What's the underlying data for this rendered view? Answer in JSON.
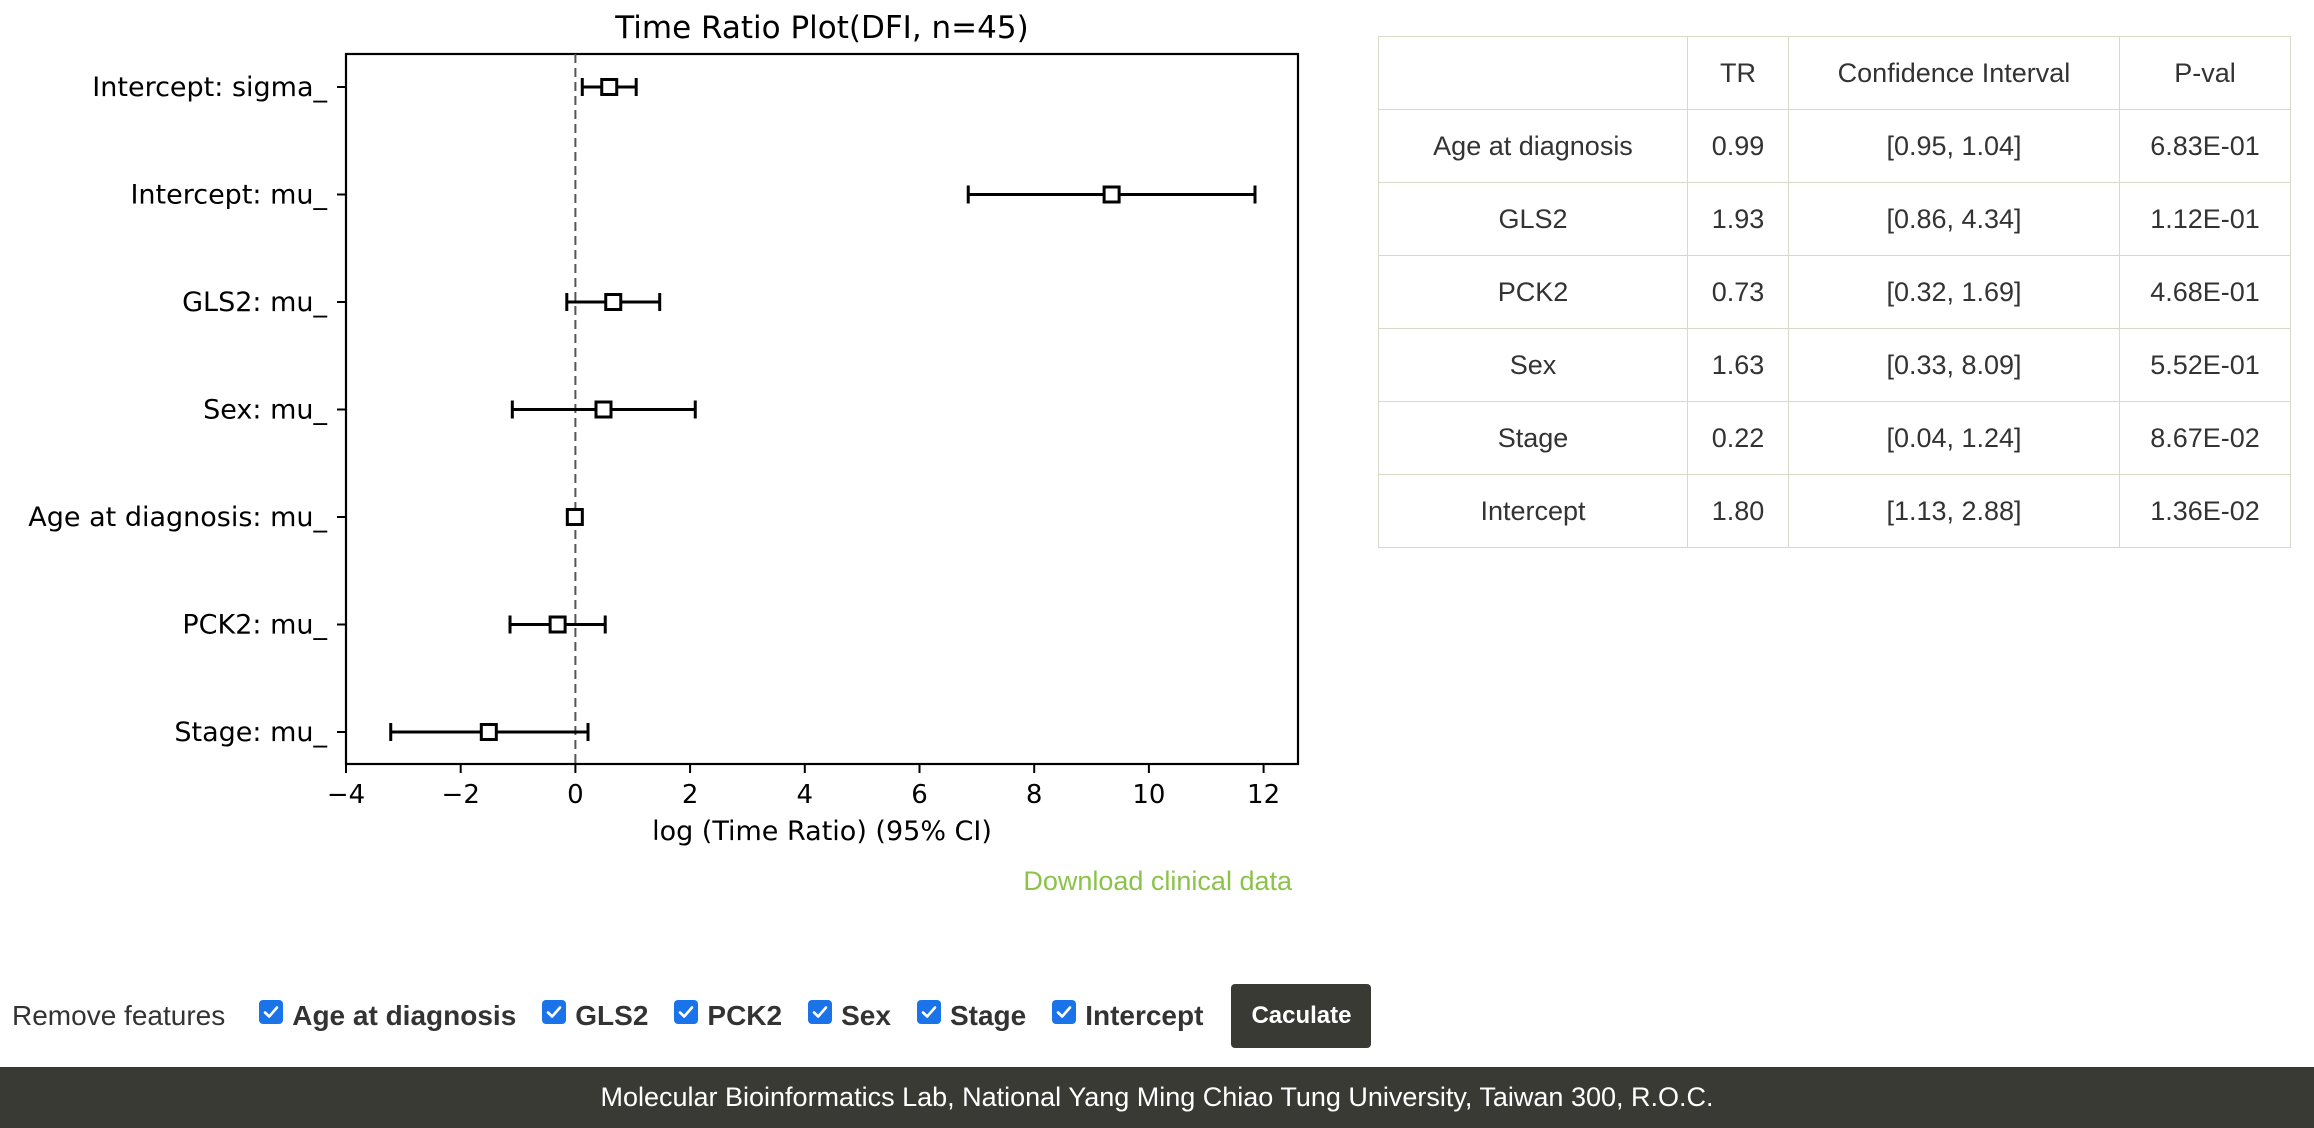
{
  "chart_data": {
    "type": "forest",
    "title": "Time Ratio Plot(DFI, n=45)",
    "xlabel": "log (Time Ratio) (95% CI)",
    "ylabel": "",
    "xlim": [
      -4,
      12.6
    ],
    "xticks": [
      -4,
      -2,
      0,
      2,
      4,
      6,
      8,
      10,
      12
    ],
    "xtick_labels": [
      "−4",
      "−2",
      "0",
      "2",
      "4",
      "6",
      "8",
      "10",
      "12"
    ],
    "reference_line": 0,
    "rows": [
      {
        "label": "Intercept: sigma_",
        "estimate": 0.59,
        "lower": 0.12,
        "upper": 1.06
      },
      {
        "label": "Intercept: mu_",
        "estimate": 9.35,
        "lower": 6.85,
        "upper": 11.85
      },
      {
        "label": "GLS2: mu_",
        "estimate": 0.66,
        "lower": -0.15,
        "upper": 1.47
      },
      {
        "label": "Sex: mu_",
        "estimate": 0.49,
        "lower": -1.1,
        "upper": 2.09
      },
      {
        "label": "Age at diagnosis: mu_",
        "estimate": -0.01,
        "lower": -0.05,
        "upper": 0.04
      },
      {
        "label": "PCK2: mu_",
        "estimate": -0.31,
        "lower": -1.14,
        "upper": 0.52
      },
      {
        "label": "Stage: mu_",
        "estimate": -1.51,
        "lower": -3.22,
        "upper": 0.22
      }
    ]
  },
  "download_link": "Download clinical data",
  "table": {
    "headers": [
      "",
      "TR",
      "Confidence Interval",
      "P-val"
    ],
    "rows": [
      [
        "Age at diagnosis",
        "0.99",
        "[0.95, 1.04]",
        "6.83E-01"
      ],
      [
        "GLS2",
        "1.93",
        "[0.86, 4.34]",
        "1.12E-01"
      ],
      [
        "PCK2",
        "0.73",
        "[0.32, 1.69]",
        "4.68E-01"
      ],
      [
        "Sex",
        "1.63",
        "[0.33, 8.09]",
        "5.52E-01"
      ],
      [
        "Stage",
        "0.22",
        "[0.04, 1.24]",
        "8.67E-02"
      ],
      [
        "Intercept",
        "1.80",
        "[1.13, 2.88]",
        "1.36E-02"
      ]
    ]
  },
  "features": {
    "label": "Remove features",
    "items": [
      {
        "label": "Age at diagnosis",
        "checked": true
      },
      {
        "label": "GLS2",
        "checked": true
      },
      {
        "label": "PCK2",
        "checked": true
      },
      {
        "label": "Sex",
        "checked": true
      },
      {
        "label": "Stage",
        "checked": true
      },
      {
        "label": "Intercept",
        "checked": true
      }
    ],
    "button": "Caculate"
  },
  "colors": {
    "link": "#8bc34a",
    "checkbox": "#1a73e8",
    "footer_bg": "#3a3a35"
  },
  "footer": "Molecular Bioinformatics Lab, National Yang Ming Chiao Tung University, Taiwan 300, R.O.C."
}
